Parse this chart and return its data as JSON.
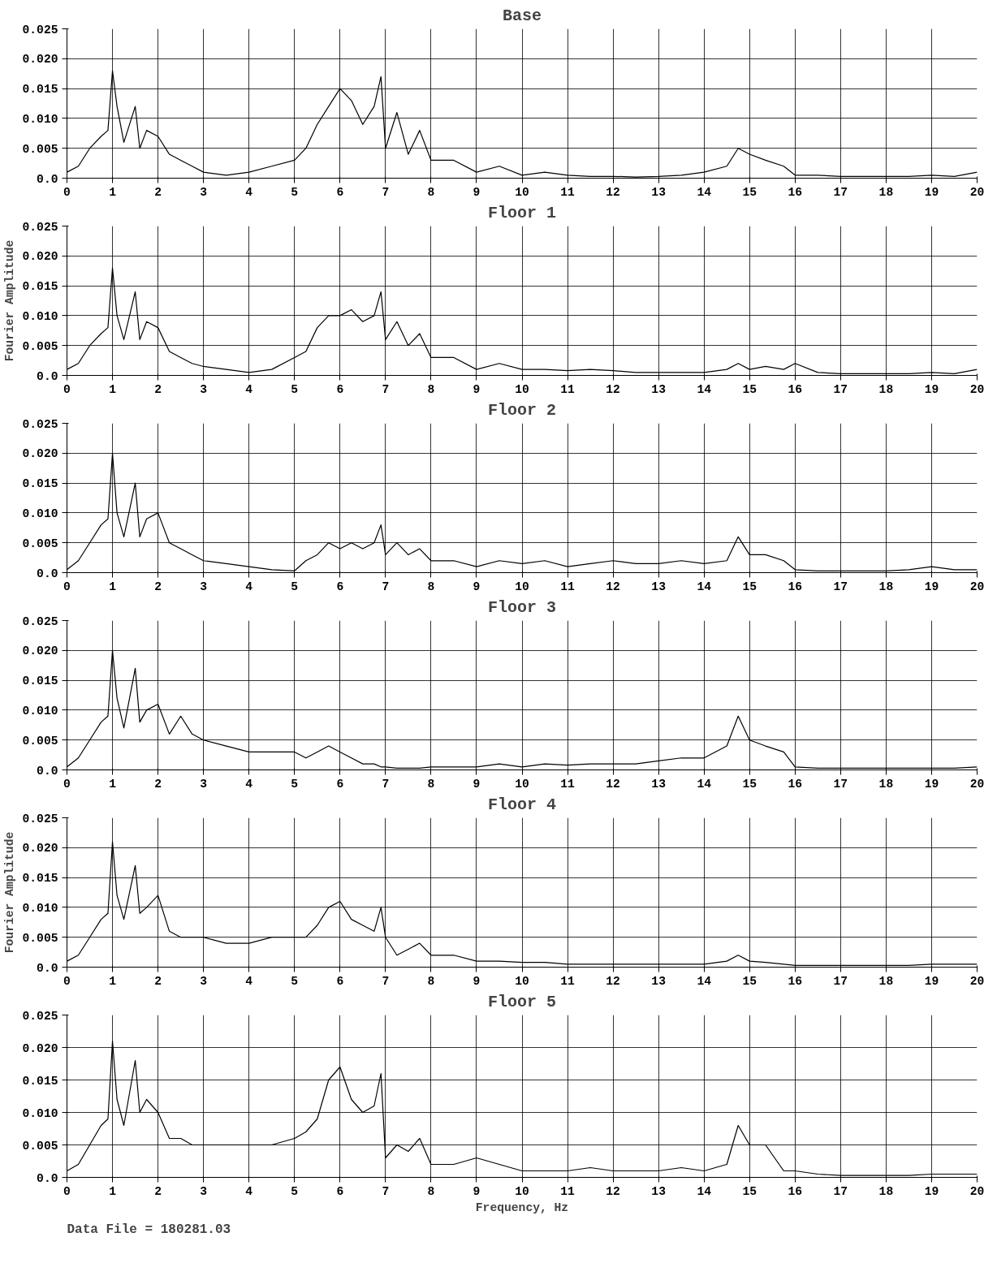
{
  "chart_data": [
    {
      "type": "line",
      "title": "Base",
      "x": [
        0,
        0.25,
        0.5,
        0.75,
        0.9,
        1.0,
        1.1,
        1.25,
        1.5,
        1.6,
        1.75,
        2,
        2.25,
        2.5,
        2.75,
        3,
        3.5,
        4,
        4.5,
        5,
        5.25,
        5.5,
        5.75,
        6,
        6.25,
        6.5,
        6.75,
        6.9,
        7,
        7.25,
        7.5,
        7.75,
        8,
        8.5,
        9,
        9.5,
        10,
        10.5,
        11,
        11.5,
        12,
        12.5,
        13,
        13.5,
        14,
        14.5,
        14.75,
        15,
        15.35,
        15.75,
        16,
        16.5,
        17,
        17.5,
        18,
        18.5,
        19,
        19.5,
        20
      ],
      "series": [
        {
          "color": "#000000",
          "values": [
            0.001,
            0.002,
            0.005,
            0.007,
            0.008,
            0.018,
            0.012,
            0.006,
            0.012,
            0.005,
            0.008,
            0.007,
            0.004,
            0.003,
            0.002,
            0.001,
            0.0005,
            0.001,
            0.002,
            0.003,
            0.005,
            0.009,
            0.012,
            0.015,
            0.013,
            0.009,
            0.012,
            0.017,
            0.005,
            0.011,
            0.004,
            0.008,
            0.003,
            0.003,
            0.001,
            0.002,
            0.0005,
            0.001,
            0.0005,
            0.0003,
            0.0003,
            0.0002,
            0.0003,
            0.0005,
            0.001,
            0.002,
            0.005,
            0.004,
            0.003,
            0.002,
            0.0005,
            0.0005,
            0.0003,
            0.0003,
            0.0003,
            0.0003,
            0.0005,
            0.0003,
            0.001
          ]
        }
      ],
      "xlim": [
        0,
        20
      ],
      "xticks": [
        0,
        1,
        2,
        3,
        4,
        5,
        6,
        7,
        8,
        9,
        10,
        11,
        12,
        13,
        14,
        15,
        16,
        17,
        18,
        19,
        20
      ],
      "ylim": [
        0,
        0.025
      ],
      "yticks": [
        {
          "value": 0,
          "label": "0.0"
        },
        0.005,
        {
          "value": 0.01,
          "label": "0.010"
        },
        0.015,
        {
          "value": 0.02,
          "label": "0.020"
        },
        0.025
      ],
      "grid": true
    },
    {
      "type": "line",
      "title": "Floor 1",
      "ylabel": "Fourier Amplitude",
      "x": [
        0,
        0.25,
        0.5,
        0.75,
        0.9,
        1.0,
        1.1,
        1.25,
        1.5,
        1.6,
        1.75,
        2,
        2.25,
        2.5,
        2.75,
        3,
        3.5,
        4,
        4.5,
        5,
        5.25,
        5.5,
        5.75,
        6,
        6.25,
        6.5,
        6.75,
        6.9,
        7,
        7.25,
        7.5,
        7.75,
        8,
        8.5,
        9,
        9.5,
        10,
        10.5,
        11,
        11.5,
        12,
        12.5,
        13,
        13.5,
        14,
        14.5,
        14.75,
        15,
        15.35,
        15.75,
        16,
        16.5,
        17,
        17.5,
        18,
        18.5,
        19,
        19.5,
        20
      ],
      "series": [
        {
          "color": "#000000",
          "values": [
            0.001,
            0.002,
            0.005,
            0.007,
            0.008,
            0.018,
            0.01,
            0.006,
            0.014,
            0.006,
            0.009,
            0.008,
            0.004,
            0.003,
            0.002,
            0.0015,
            0.001,
            0.0005,
            0.001,
            0.003,
            0.004,
            0.008,
            0.01,
            0.01,
            0.011,
            0.009,
            0.01,
            0.014,
            0.006,
            0.009,
            0.005,
            0.007,
            0.003,
            0.003,
            0.001,
            0.002,
            0.001,
            0.001,
            0.0008,
            0.001,
            0.0008,
            0.0005,
            0.0005,
            0.0005,
            0.0005,
            0.001,
            0.002,
            0.001,
            0.0015,
            0.001,
            0.002,
            0.0005,
            0.0003,
            0.0003,
            0.0003,
            0.0003,
            0.0005,
            0.0003,
            0.001
          ]
        }
      ],
      "xlim": [
        0,
        20
      ],
      "xticks": [
        0,
        1,
        2,
        3,
        4,
        5,
        6,
        7,
        8,
        9,
        10,
        11,
        12,
        13,
        14,
        15,
        16,
        17,
        18,
        19,
        20
      ],
      "ylim": [
        0,
        0.025
      ],
      "yticks": [
        {
          "value": 0,
          "label": "0.0"
        },
        0.005,
        {
          "value": 0.01,
          "label": "0.010"
        },
        0.015,
        {
          "value": 0.02,
          "label": "0.020"
        },
        0.025
      ],
      "grid": true
    },
    {
      "type": "line",
      "title": "Floor 2",
      "x": [
        0,
        0.25,
        0.5,
        0.75,
        0.9,
        1.0,
        1.1,
        1.25,
        1.5,
        1.6,
        1.75,
        2,
        2.25,
        2.5,
        2.75,
        3,
        3.5,
        4,
        4.5,
        5,
        5.25,
        5.5,
        5.75,
        6,
        6.25,
        6.5,
        6.75,
        6.9,
        7,
        7.25,
        7.5,
        7.75,
        8,
        8.5,
        9,
        9.5,
        10,
        10.5,
        11,
        11.5,
        12,
        12.5,
        13,
        13.5,
        14,
        14.5,
        14.75,
        15,
        15.35,
        15.75,
        16,
        16.5,
        17,
        17.5,
        18,
        18.5,
        19,
        19.5,
        20
      ],
      "series": [
        {
          "color": "#000000",
          "values": [
            0.0005,
            0.002,
            0.005,
            0.008,
            0.009,
            0.02,
            0.01,
            0.006,
            0.015,
            0.006,
            0.009,
            0.01,
            0.005,
            0.004,
            0.003,
            0.002,
            0.0015,
            0.001,
            0.0005,
            0.0003,
            0.002,
            0.003,
            0.005,
            0.004,
            0.005,
            0.004,
            0.005,
            0.008,
            0.003,
            0.005,
            0.003,
            0.004,
            0.002,
            0.002,
            0.001,
            0.002,
            0.0015,
            0.002,
            0.001,
            0.0015,
            0.002,
            0.0015,
            0.0015,
            0.002,
            0.0015,
            0.002,
            0.006,
            0.003,
            0.003,
            0.002,
            0.0005,
            0.0003,
            0.0003,
            0.0003,
            0.0003,
            0.0005,
            0.001,
            0.0005,
            0.0005
          ]
        }
      ],
      "xlim": [
        0,
        20
      ],
      "xticks": [
        0,
        1,
        2,
        3,
        4,
        5,
        6,
        7,
        8,
        9,
        10,
        11,
        12,
        13,
        14,
        15,
        16,
        17,
        18,
        19,
        20
      ],
      "ylim": [
        0,
        0.025
      ],
      "yticks": [
        {
          "value": 0,
          "label": "0.0"
        },
        0.005,
        {
          "value": 0.01,
          "label": "0.010"
        },
        0.015,
        {
          "value": 0.02,
          "label": "0.020"
        },
        0.025
      ],
      "grid": true
    },
    {
      "type": "line",
      "title": "Floor 3",
      "x": [
        0,
        0.25,
        0.5,
        0.75,
        0.9,
        1.0,
        1.1,
        1.25,
        1.5,
        1.6,
        1.75,
        2,
        2.25,
        2.5,
        2.75,
        3,
        3.5,
        4,
        4.5,
        5,
        5.25,
        5.5,
        5.75,
        6,
        6.25,
        6.5,
        6.75,
        6.9,
        7,
        7.25,
        7.5,
        7.75,
        8,
        8.5,
        9,
        9.5,
        10,
        10.5,
        11,
        11.5,
        12,
        12.5,
        13,
        13.5,
        14,
        14.5,
        14.75,
        15,
        15.35,
        15.75,
        16,
        16.5,
        17,
        17.5,
        18,
        18.5,
        19,
        19.5,
        20
      ],
      "series": [
        {
          "color": "#000000",
          "values": [
            0.0005,
            0.002,
            0.005,
            0.008,
            0.009,
            0.02,
            0.012,
            0.007,
            0.017,
            0.008,
            0.01,
            0.011,
            0.006,
            0.009,
            0.006,
            0.005,
            0.004,
            0.003,
            0.003,
            0.003,
            0.002,
            0.003,
            0.004,
            0.003,
            0.002,
            0.001,
            0.001,
            0.0005,
            0.0005,
            0.0003,
            0.0003,
            0.0003,
            0.0005,
            0.0005,
            0.0005,
            0.001,
            0.0005,
            0.001,
            0.0008,
            0.001,
            0.001,
            0.001,
            0.0015,
            0.002,
            0.002,
            0.004,
            0.009,
            0.005,
            0.004,
            0.003,
            0.0005,
            0.0003,
            0.0003,
            0.0003,
            0.0003,
            0.0003,
            0.0003,
            0.0003,
            0.0005
          ]
        }
      ],
      "xlim": [
        0,
        20
      ],
      "xticks": [
        0,
        1,
        2,
        3,
        4,
        5,
        6,
        7,
        8,
        9,
        10,
        11,
        12,
        13,
        14,
        15,
        16,
        17,
        18,
        19,
        20
      ],
      "ylim": [
        0,
        0.025
      ],
      "yticks": [
        {
          "value": 0,
          "label": "0.0"
        },
        0.005,
        {
          "value": 0.01,
          "label": "0.010"
        },
        0.015,
        {
          "value": 0.02,
          "label": "0.020"
        },
        0.025
      ],
      "grid": true
    },
    {
      "type": "line",
      "title": "Floor 4",
      "ylabel": "Fourier Amplitude",
      "x": [
        0,
        0.25,
        0.5,
        0.75,
        0.9,
        1.0,
        1.1,
        1.25,
        1.5,
        1.6,
        1.75,
        2,
        2.25,
        2.5,
        2.75,
        3,
        3.5,
        4,
        4.5,
        5,
        5.25,
        5.5,
        5.75,
        6,
        6.25,
        6.5,
        6.75,
        6.9,
        7,
        7.25,
        7.5,
        7.75,
        8,
        8.5,
        9,
        9.5,
        10,
        10.5,
        11,
        11.5,
        12,
        12.5,
        13,
        13.5,
        14,
        14.5,
        14.75,
        15,
        15.35,
        15.75,
        16,
        16.5,
        17,
        17.5,
        18,
        18.5,
        19,
        19.5,
        20
      ],
      "series": [
        {
          "color": "#000000",
          "values": [
            0.001,
            0.002,
            0.005,
            0.008,
            0.009,
            0.021,
            0.012,
            0.008,
            0.017,
            0.009,
            0.01,
            0.012,
            0.006,
            0.005,
            0.005,
            0.005,
            0.004,
            0.004,
            0.005,
            0.005,
            0.005,
            0.007,
            0.01,
            0.011,
            0.008,
            0.007,
            0.006,
            0.01,
            0.005,
            0.002,
            0.003,
            0.004,
            0.002,
            0.002,
            0.001,
            0.001,
            0.0008,
            0.0008,
            0.0005,
            0.0005,
            0.0005,
            0.0005,
            0.0005,
            0.0005,
            0.0005,
            0.001,
            0.002,
            0.001,
            0.0008,
            0.0005,
            0.0003,
            0.0003,
            0.0003,
            0.0003,
            0.0003,
            0.0003,
            0.0005,
            0.0005,
            0.0005
          ]
        }
      ],
      "xlim": [
        0,
        20
      ],
      "xticks": [
        0,
        1,
        2,
        3,
        4,
        5,
        6,
        7,
        8,
        9,
        10,
        11,
        12,
        13,
        14,
        15,
        16,
        17,
        18,
        19,
        20
      ],
      "ylim": [
        0,
        0.025
      ],
      "yticks": [
        {
          "value": 0,
          "label": "0.0"
        },
        0.005,
        {
          "value": 0.01,
          "label": "0.010"
        },
        0.015,
        {
          "value": 0.02,
          "label": "0.020"
        },
        0.025
      ],
      "grid": true
    },
    {
      "type": "line",
      "title": "Floor 5",
      "xlabel": "Frequency, Hz",
      "annotations": [
        "Data File =  180281.03"
      ],
      "x": [
        0,
        0.25,
        0.5,
        0.75,
        0.9,
        1.0,
        1.1,
        1.25,
        1.5,
        1.6,
        1.75,
        2,
        2.25,
        2.5,
        2.75,
        3,
        3.5,
        4,
        4.5,
        5,
        5.25,
        5.5,
        5.75,
        6,
        6.25,
        6.5,
        6.75,
        6.9,
        7,
        7.25,
        7.5,
        7.75,
        8,
        8.5,
        9,
        9.5,
        10,
        10.5,
        11,
        11.5,
        12,
        12.5,
        13,
        13.5,
        14,
        14.5,
        14.75,
        15,
        15.35,
        15.75,
        16,
        16.5,
        17,
        17.5,
        18,
        18.5,
        19,
        19.5,
        20
      ],
      "series": [
        {
          "color": "#000000",
          "values": [
            0.001,
            0.002,
            0.005,
            0.008,
            0.009,
            0.021,
            0.012,
            0.008,
            0.018,
            0.01,
            0.012,
            0.01,
            0.006,
            0.006,
            0.005,
            0.005,
            0.005,
            0.005,
            0.005,
            0.006,
            0.007,
            0.009,
            0.015,
            0.017,
            0.012,
            0.01,
            0.011,
            0.016,
            0.003,
            0.005,
            0.004,
            0.006,
            0.002,
            0.002,
            0.003,
            0.002,
            0.001,
            0.001,
            0.001,
            0.0015,
            0.001,
            0.001,
            0.001,
            0.0015,
            0.001,
            0.002,
            0.008,
            0.005,
            0.005,
            0.001,
            0.001,
            0.0005,
            0.0003,
            0.0003,
            0.0003,
            0.0003,
            0.0005,
            0.0005,
            0.0005
          ]
        }
      ],
      "xlim": [
        0,
        20
      ],
      "xticks": [
        0,
        1,
        2,
        3,
        4,
        5,
        6,
        7,
        8,
        9,
        10,
        11,
        12,
        13,
        14,
        15,
        16,
        17,
        18,
        19,
        20
      ],
      "ylim": [
        0,
        0.025
      ],
      "yticks": [
        {
          "value": 0,
          "label": "0.0"
        },
        0.005,
        {
          "value": 0.01,
          "label": "0.010"
        },
        0.015,
        {
          "value": 0.02,
          "label": "0.020"
        },
        0.025
      ],
      "grid": true
    }
  ]
}
